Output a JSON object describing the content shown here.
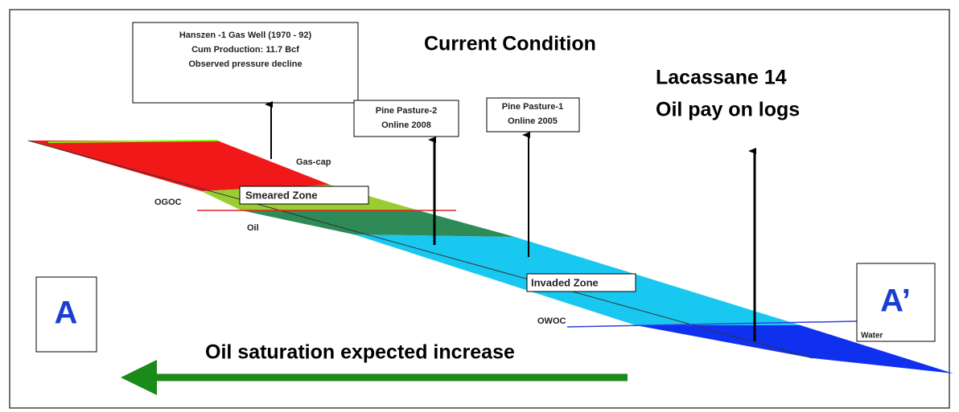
{
  "title": "Current Condition",
  "wells": [
    {
      "lines": [
        "Hanszen -1 Gas Well (1970 - 92)",
        "Cum Production: 11.7 Bcf",
        "Observed pressure decline"
      ]
    },
    {
      "lines": [
        "Pine Pasture-2",
        "Online 2008"
      ]
    },
    {
      "lines": [
        "Pine Pasture-1",
        "Online 2005"
      ]
    },
    {
      "lines": [
        "Lacassane 14",
        "Oil pay on logs"
      ]
    }
  ],
  "zones": {
    "gas_cap": "Gas-cap",
    "smeared": "Smeared Zone",
    "ogoc": "OGOC",
    "oil": "Oil",
    "invaded": "Invaded Zone",
    "owoc": "OWOC",
    "water": "Water"
  },
  "ends": {
    "left": "A",
    "right": "A’"
  },
  "trend": "Oil saturation expected increase"
}
